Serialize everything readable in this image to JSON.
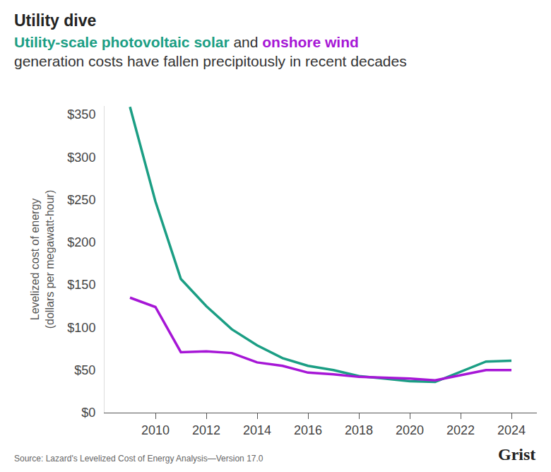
{
  "chart_data": {
    "type": "line",
    "title": "Utility dive",
    "subtitle": [
      "Utility-scale photovoltaic solar and onshore wind",
      "generation costs have fallen precipitously in recent decades"
    ],
    "ylabel": [
      "Levelized cost of energy",
      "(dollars per megawatt-hour)"
    ],
    "x": [
      2009,
      2010,
      2011,
      2012,
      2013,
      2014,
      2015,
      2016,
      2017,
      2018,
      2019,
      2020,
      2021,
      2022,
      2023,
      2024
    ],
    "series": [
      {
        "name": "Utility-scale photovoltaic solar",
        "color": "#1b9e84",
        "values": [
          359,
          248,
          157,
          125,
          98,
          79,
          64,
          55,
          50,
          43,
          40,
          37,
          36,
          48,
          60,
          61
        ]
      },
      {
        "name": "onshore wind",
        "color": "#a616d6",
        "values": [
          135,
          124,
          71,
          72,
          70,
          59,
          55,
          47,
          45,
          42,
          41,
          40,
          38,
          44,
          50,
          50
        ]
      }
    ],
    "xlim": [
      2008,
      2025
    ],
    "xticks": [
      2010,
      2012,
      2014,
      2016,
      2018,
      2020,
      2022,
      2024
    ],
    "ylim": [
      0,
      360
    ],
    "yticks": [
      {
        "value": 0,
        "label": "$0"
      },
      {
        "value": 50,
        "label": "$50"
      },
      {
        "value": 100,
        "label": "$100"
      },
      {
        "value": 150,
        "label": "$150"
      },
      {
        "value": 200,
        "label": "$200"
      },
      {
        "value": 250,
        "label": "$250"
      },
      {
        "value": 300,
        "label": "$300"
      },
      {
        "value": 350,
        "label": "$350"
      }
    ],
    "grid": false,
    "source": "Source: Lazard's Levelized Cost of Energy Analysis—Version 17.0",
    "brand": "Grist"
  }
}
